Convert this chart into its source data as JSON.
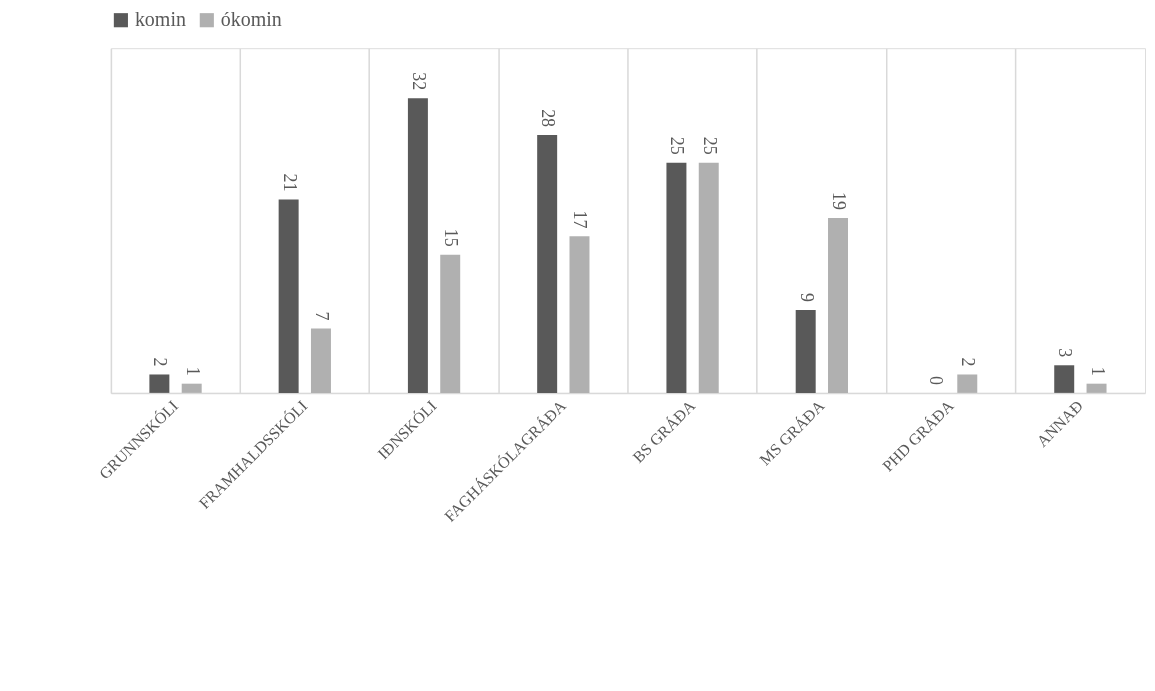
{
  "chart_data": {
    "type": "bar",
    "categories": [
      "GRUNNSKÓLI",
      "FRAMHALDSSKÓLI",
      "IÐNSKÓLI",
      "FAGHÁSKÓLAGRÁÐA",
      "BS GRÁÐA",
      "MS GRÁÐA",
      "PHD GRÁÐA",
      "ANNAÐ"
    ],
    "series": [
      {
        "name": "komin",
        "color": "#595959",
        "values": [
          2,
          21,
          32,
          28,
          25,
          9,
          0,
          3
        ]
      },
      {
        "name": "ókomin",
        "color": "#b0b0b0",
        "values": [
          1,
          7,
          15,
          17,
          25,
          19,
          2,
          1
        ]
      }
    ],
    "data_labels": true,
    "grid": "x",
    "legend": "top"
  }
}
